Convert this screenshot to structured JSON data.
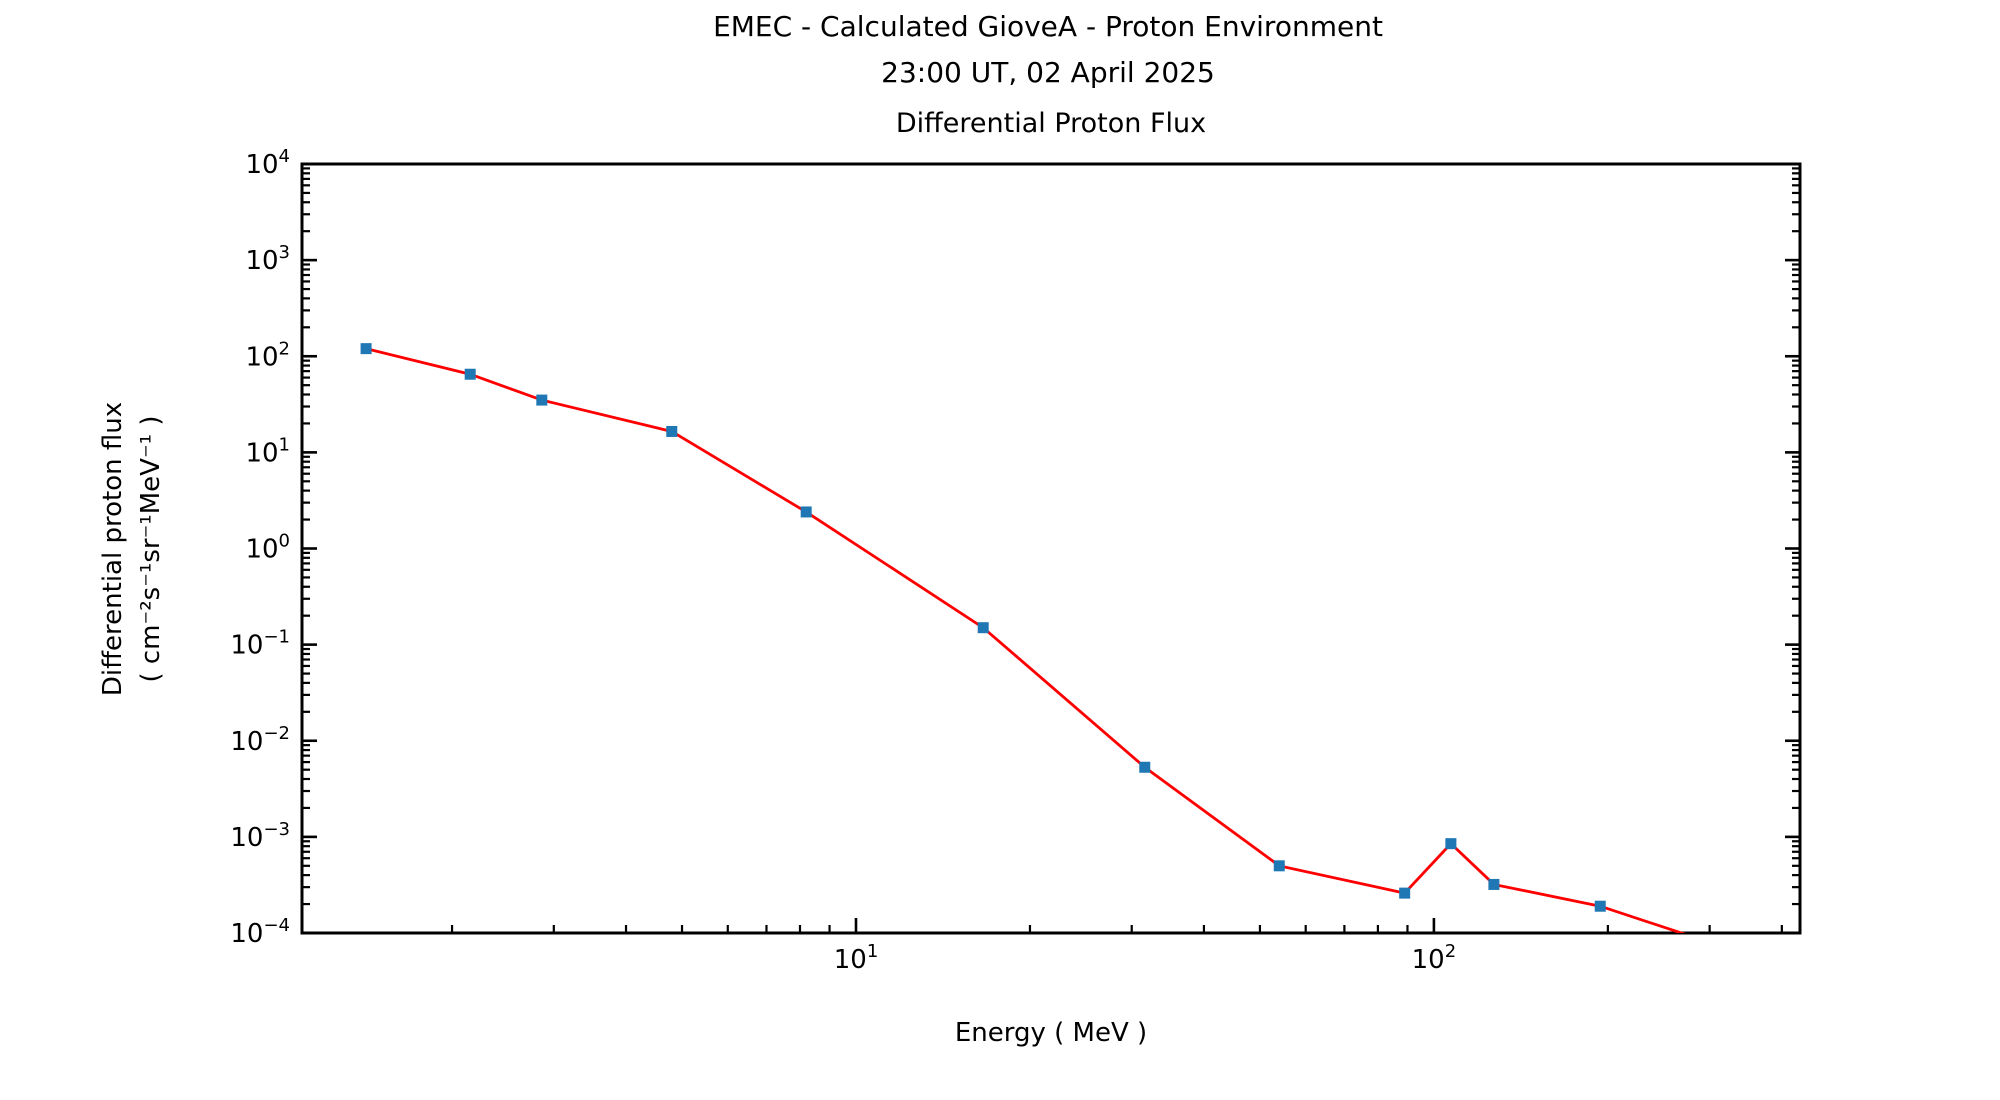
{
  "chart_data": {
    "type": "line",
    "title": "EMEC - Calculated GioveA - Proton Environment",
    "subtitle": "23:00 UT, 02 April 2025",
    "axes_title": "Differential Proton Flux",
    "xlabel": "Energy ( MeV )",
    "ylabel": "Differential proton flux",
    "ylabel_units": "( cm⁻²s⁻¹sr⁻¹MeV⁻¹ )",
    "x_scale": "log",
    "y_scale": "log",
    "xlim": [
      1.1,
      430
    ],
    "ylim": [
      0.0001,
      10000
    ],
    "grid": false,
    "legend": "none",
    "axis_color": "#000000",
    "x_major_tick_exponents": [
      1,
      2
    ],
    "y_major_tick_exponents": [
      4,
      3,
      2,
      1,
      0,
      -1,
      -2,
      -3,
      -4
    ],
    "series": [
      {
        "name": "differential-proton-flux",
        "line_color": "#ff0000",
        "marker": "square",
        "marker_color": "#1f77b4",
        "x": [
          1.42,
          2.15,
          2.86,
          4.8,
          8.2,
          16.6,
          31.6,
          54,
          89,
          107,
          127,
          194,
          300
        ],
        "y": [
          120,
          65,
          35,
          16.5,
          2.4,
          0.15,
          0.0053,
          0.0005,
          0.00026,
          0.00085,
          0.00032,
          0.00019,
          8e-05
        ]
      }
    ]
  }
}
